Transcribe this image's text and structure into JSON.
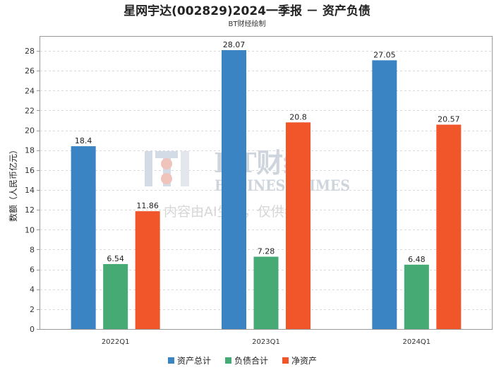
{
  "chart_data": {
    "type": "bar",
    "title": "星网宇达(002829)2024一季报 － 资产负债",
    "subtitle": "BT财经绘制",
    "xlabel": "",
    "ylabel": "数额（人民币亿元）",
    "ylim": [
      0,
      28
    ],
    "yticks": [
      0,
      2,
      4,
      6,
      8,
      10,
      12,
      14,
      16,
      18,
      20,
      22,
      24,
      26,
      28
    ],
    "grid": true,
    "legend_position": "bottom",
    "categories": [
      "2022Q1",
      "2023Q1",
      "2024Q1"
    ],
    "series": [
      {
        "name": "资产总计",
        "color": "#3a84c3",
        "values": [
          18.4,
          28.07,
          27.05
        ],
        "labels": [
          "18.4",
          "28.07",
          "27.05"
        ]
      },
      {
        "name": "负债合计",
        "color": "#46aa74",
        "values": [
          6.54,
          7.28,
          6.48
        ],
        "labels": [
          "6.54",
          "7.28",
          "6.48"
        ]
      },
      {
        "name": "净资产",
        "color": "#f0562a",
        "values": [
          11.86,
          20.8,
          20.57
        ],
        "labels": [
          "11.86",
          "20.8",
          "20.57"
        ]
      }
    ]
  },
  "watermark": {
    "brand": "BT财经",
    "english": "BUSINESS TIMES",
    "notice": "内容由AI生成，仅供参考"
  }
}
